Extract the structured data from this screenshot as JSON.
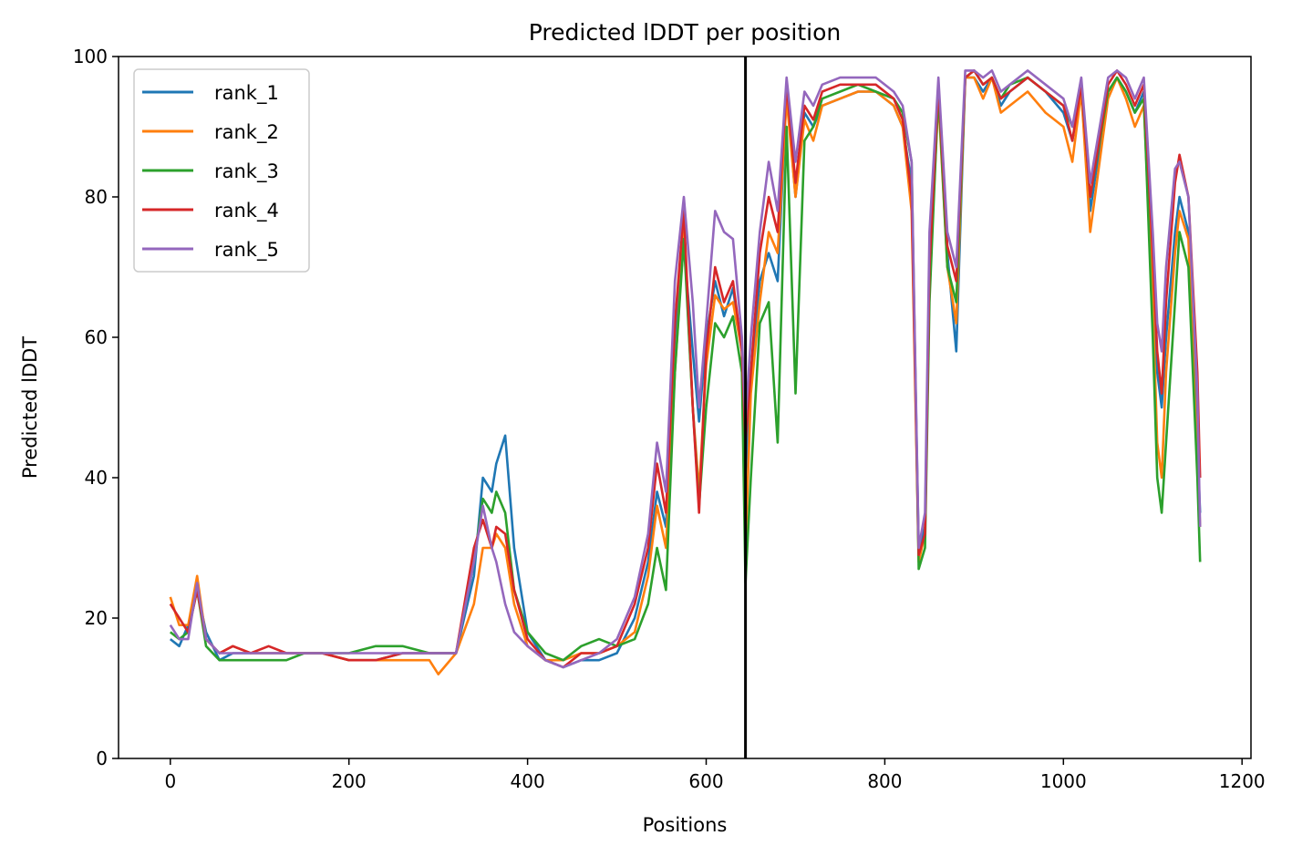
{
  "chart_data": {
    "type": "line",
    "title": "Predicted lDDT per position",
    "xlabel": "Positions",
    "ylabel": "Predicted lDDT",
    "xlim": [
      -58,
      1210
    ],
    "ylim": [
      0,
      100
    ],
    "xticks": [
      0,
      200,
      400,
      600,
      800,
      1000,
      1200
    ],
    "yticks": [
      0,
      20,
      40,
      60,
      80,
      100
    ],
    "legend_position": "upper-left",
    "vline_x": 644,
    "x": [
      0,
      10,
      20,
      30,
      40,
      55,
      70,
      90,
      110,
      130,
      150,
      170,
      200,
      230,
      260,
      290,
      300,
      320,
      340,
      350,
      360,
      365,
      375,
      385,
      400,
      420,
      440,
      460,
      480,
      500,
      520,
      535,
      545,
      555,
      565,
      575,
      585,
      592,
      600,
      610,
      620,
      630,
      640,
      644,
      650,
      660,
      670,
      680,
      690,
      700,
      710,
      720,
      730,
      750,
      770,
      790,
      810,
      820,
      830,
      838,
      845,
      850,
      860,
      870,
      880,
      890,
      900,
      910,
      920,
      930,
      940,
      960,
      980,
      1000,
      1010,
      1020,
      1030,
      1050,
      1060,
      1070,
      1080,
      1090,
      1100,
      1105,
      1110,
      1115,
      1125,
      1130,
      1140,
      1150,
      1153
    ],
    "series": [
      {
        "name": "rank_1",
        "color": "#1f77b4",
        "values": [
          17,
          16,
          19,
          24,
          18,
          14,
          15,
          15,
          15,
          15,
          15,
          15,
          14,
          14,
          15,
          15,
          15,
          15,
          26,
          40,
          38,
          42,
          46,
          30,
          18,
          14,
          13,
          14,
          14,
          15,
          20,
          28,
          38,
          33,
          60,
          73,
          58,
          48,
          60,
          68,
          63,
          67,
          58,
          40,
          55,
          68,
          72,
          68,
          95,
          80,
          92,
          90,
          93,
          94,
          95,
          95,
          93,
          90,
          82,
          30,
          33,
          70,
          95,
          72,
          58,
          97,
          97,
          95,
          97,
          93,
          95,
          97,
          95,
          92,
          88,
          96,
          78,
          95,
          97,
          95,
          92,
          95,
          70,
          55,
          50,
          60,
          75,
          80,
          75,
          45,
          35
        ]
      },
      {
        "name": "rank_2",
        "color": "#ff7f0e",
        "values": [
          23,
          19,
          19,
          26,
          17,
          15,
          16,
          15,
          15,
          15,
          15,
          15,
          14,
          14,
          14,
          14,
          12,
          15,
          22,
          30,
          30,
          32,
          30,
          22,
          16,
          14,
          14,
          15,
          15,
          16,
          18,
          26,
          36,
          30,
          55,
          75,
          50,
          38,
          56,
          66,
          64,
          65,
          58,
          30,
          52,
          65,
          75,
          72,
          94,
          80,
          91,
          88,
          93,
          94,
          95,
          95,
          93,
          90,
          78,
          28,
          32,
          68,
          94,
          70,
          62,
          97,
          97,
          94,
          97,
          92,
          93,
          95,
          92,
          90,
          85,
          95,
          75,
          94,
          97,
          94,
          90,
          93,
          65,
          45,
          40,
          55,
          72,
          78,
          74,
          42,
          33
        ]
      },
      {
        "name": "rank_3",
        "color": "#2ca02c",
        "values": [
          18,
          17,
          18,
          24,
          16,
          14,
          14,
          14,
          14,
          14,
          15,
          15,
          15,
          16,
          16,
          15,
          15,
          15,
          28,
          37,
          35,
          38,
          35,
          24,
          18,
          15,
          14,
          16,
          17,
          16,
          17,
          22,
          30,
          24,
          55,
          74,
          50,
          36,
          50,
          62,
          60,
          63,
          55,
          25,
          40,
          62,
          65,
          45,
          90,
          52,
          88,
          90,
          94,
          95,
          96,
          95,
          94,
          92,
          85,
          27,
          30,
          65,
          95,
          70,
          65,
          97,
          98,
          96,
          97,
          94,
          96,
          97,
          95,
          93,
          90,
          96,
          80,
          95,
          97,
          95,
          92,
          94,
          60,
          40,
          35,
          45,
          65,
          75,
          70,
          40,
          28
        ]
      },
      {
        "name": "rank_4",
        "color": "#d62728",
        "values": [
          22,
          20,
          18,
          24,
          17,
          15,
          16,
          15,
          16,
          15,
          15,
          15,
          14,
          14,
          15,
          15,
          15,
          15,
          30,
          34,
          30,
          33,
          32,
          24,
          17,
          14,
          13,
          15,
          15,
          16,
          22,
          30,
          42,
          35,
          62,
          78,
          50,
          35,
          58,
          70,
          65,
          68,
          58,
          45,
          55,
          72,
          80,
          75,
          96,
          82,
          93,
          91,
          95,
          96,
          96,
          96,
          94,
          91,
          80,
          29,
          32,
          70,
          96,
          73,
          68,
          97,
          98,
          96,
          97,
          94,
          95,
          97,
          95,
          93,
          88,
          96,
          80,
          96,
          98,
          96,
          93,
          96,
          72,
          58,
          52,
          65,
          82,
          86,
          80,
          55,
          40
        ]
      },
      {
        "name": "rank_5",
        "color": "#9467bd",
        "values": [
          19,
          17,
          17,
          25,
          17,
          15,
          15,
          15,
          15,
          15,
          15,
          15,
          15,
          15,
          15,
          15,
          15,
          15,
          28,
          36,
          30,
          28,
          22,
          18,
          16,
          14,
          13,
          14,
          15,
          17,
          23,
          32,
          45,
          38,
          68,
          80,
          65,
          50,
          62,
          78,
          75,
          74,
          60,
          48,
          60,
          75,
          85,
          78,
          97,
          85,
          95,
          93,
          96,
          97,
          97,
          97,
          95,
          93,
          85,
          30,
          35,
          75,
          97,
          75,
          70,
          98,
          98,
          97,
          98,
          95,
          96,
          98,
          96,
          94,
          90,
          97,
          82,
          97,
          98,
          97,
          94,
          97,
          75,
          62,
          58,
          70,
          84,
          85,
          80,
          52,
          33
        ]
      }
    ]
  }
}
